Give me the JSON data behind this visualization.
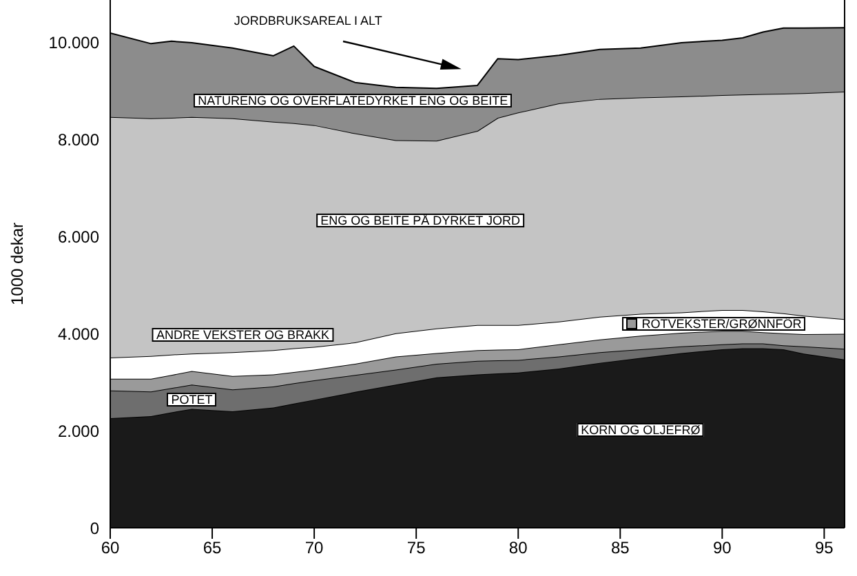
{
  "chart_data": {
    "type": "area",
    "stacked": true,
    "ylabel": "1000 dekar",
    "x": [
      60,
      62,
      63,
      64,
      66,
      68,
      69,
      70,
      72,
      74,
      76,
      78,
      79,
      80,
      82,
      84,
      86,
      88,
      90,
      91,
      92,
      93,
      94,
      96
    ],
    "series": [
      {
        "name": "KORN OG OLJEFRØ",
        "color": "#1a1a1a",
        "values": [
          2260,
          2300,
          2380,
          2450,
          2400,
          2480,
          2560,
          2640,
          2800,
          2950,
          3100,
          3160,
          3180,
          3200,
          3280,
          3400,
          3500,
          3600,
          3680,
          3700,
          3700,
          3680,
          3590,
          3470
        ]
      },
      {
        "name": "POTET",
        "color": "#6e6e6e",
        "values": [
          570,
          510,
          500,
          500,
          450,
          430,
          420,
          400,
          350,
          310,
          280,
          280,
          270,
          260,
          250,
          220,
          180,
          140,
          100,
          100,
          100,
          80,
          150,
          220
        ]
      },
      {
        "name": "ROTVEKSTER/GRØNNFÔR",
        "color": "#9a9a9a",
        "values": [
          240,
          260,
          270,
          280,
          280,
          250,
          230,
          220,
          230,
          270,
          220,
          220,
          220,
          220,
          250,
          260,
          280,
          280,
          280,
          260,
          230,
          250,
          250,
          310
        ]
      },
      {
        "name": "ANDRE VEKSTER OG BRAKK",
        "color": "#ffffff",
        "values": [
          440,
          470,
          420,
          360,
          490,
          500,
          490,
          470,
          440,
          480,
          510,
          520,
          510,
          500,
          470,
          470,
          450,
          420,
          430,
          430,
          430,
          410,
          380,
          300
        ]
      },
      {
        "name": "ENG OG BEITE PÅ DYRKET JORD",
        "color": "#c4c4c4",
        "values": [
          4960,
          4900,
          4880,
          4880,
          4820,
          4710,
          4640,
          4570,
          4310,
          3980,
          3870,
          4000,
          4270,
          4380,
          4500,
          4490,
          4460,
          4450,
          4430,
          4440,
          4480,
          4530,
          4590,
          4690
        ]
      },
      {
        "name": "NATURENG OG OVERFLATEDYRKET ENG OG BEITE",
        "color": "#8c8c8c",
        "values": [
          1730,
          1540,
          1580,
          1530,
          1450,
          1360,
          1590,
          1210,
          1050,
          1090,
          1080,
          940,
          1220,
          1090,
          990,
          1020,
          1020,
          1110,
          1130,
          1170,
          1280,
          1350,
          1340,
          1320
        ]
      }
    ],
    "xlim": [
      60,
      96
    ],
    "ylim": [
      0,
      10880
    ],
    "xticks": [
      60,
      65,
      70,
      75,
      80,
      85,
      90,
      95
    ],
    "yticks": [
      0,
      {
        "value": 2000,
        "label": "2.000"
      },
      {
        "value": 4000,
        "label": "4.000"
      },
      {
        "value": 6000,
        "label": "6.000"
      },
      {
        "value": 8000,
        "label": "8.000"
      },
      {
        "value": 10000,
        "label": "10.000"
      }
    ],
    "annotations": [
      "JORDBRUKSAREAL I ALT"
    ]
  }
}
